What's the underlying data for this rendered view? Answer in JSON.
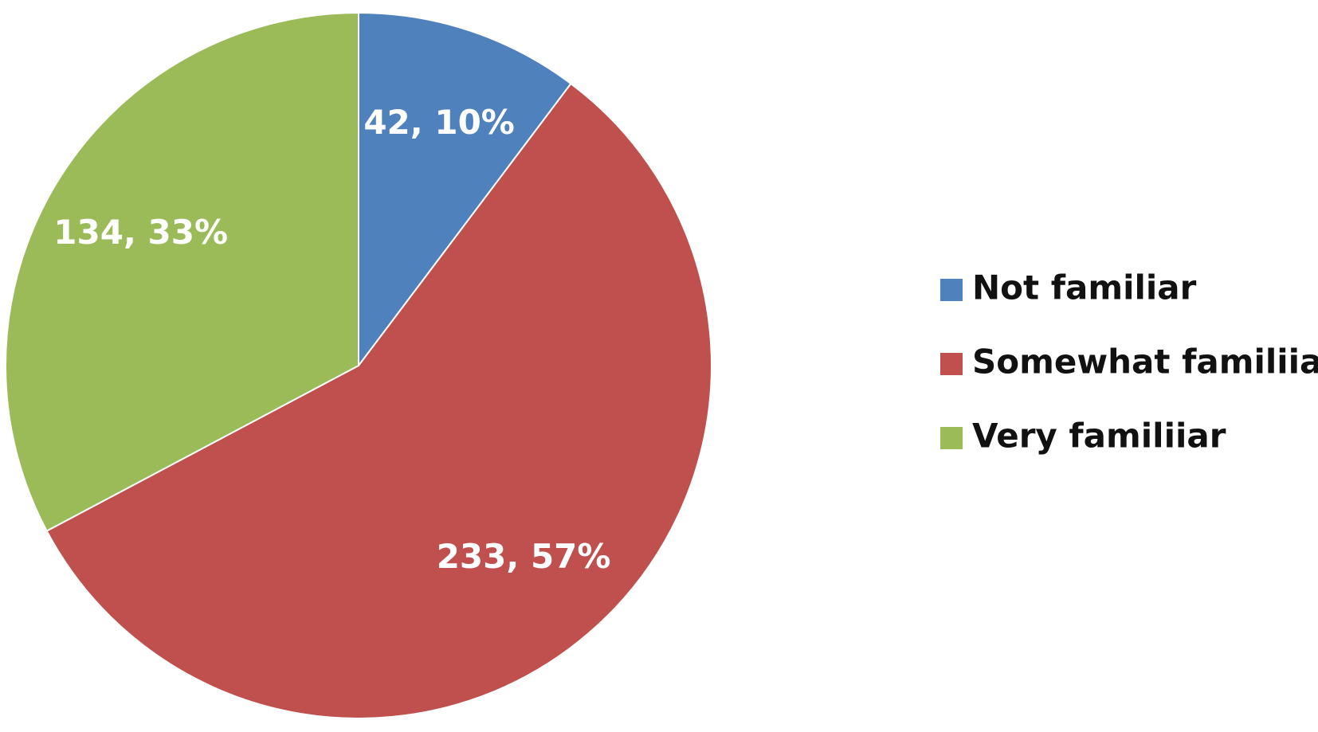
{
  "chart_data": {
    "type": "pie",
    "categories": [
      "Not familiar",
      "Somewhat familiiar",
      "Very familiiar"
    ],
    "values": [
      42,
      233,
      134
    ],
    "value_labels": [
      "42, 10%",
      "233, 57%",
      "134, 33%"
    ],
    "colors": [
      "#4f81bd",
      "#c0504d",
      "#9bbb59"
    ],
    "legend": "right"
  }
}
